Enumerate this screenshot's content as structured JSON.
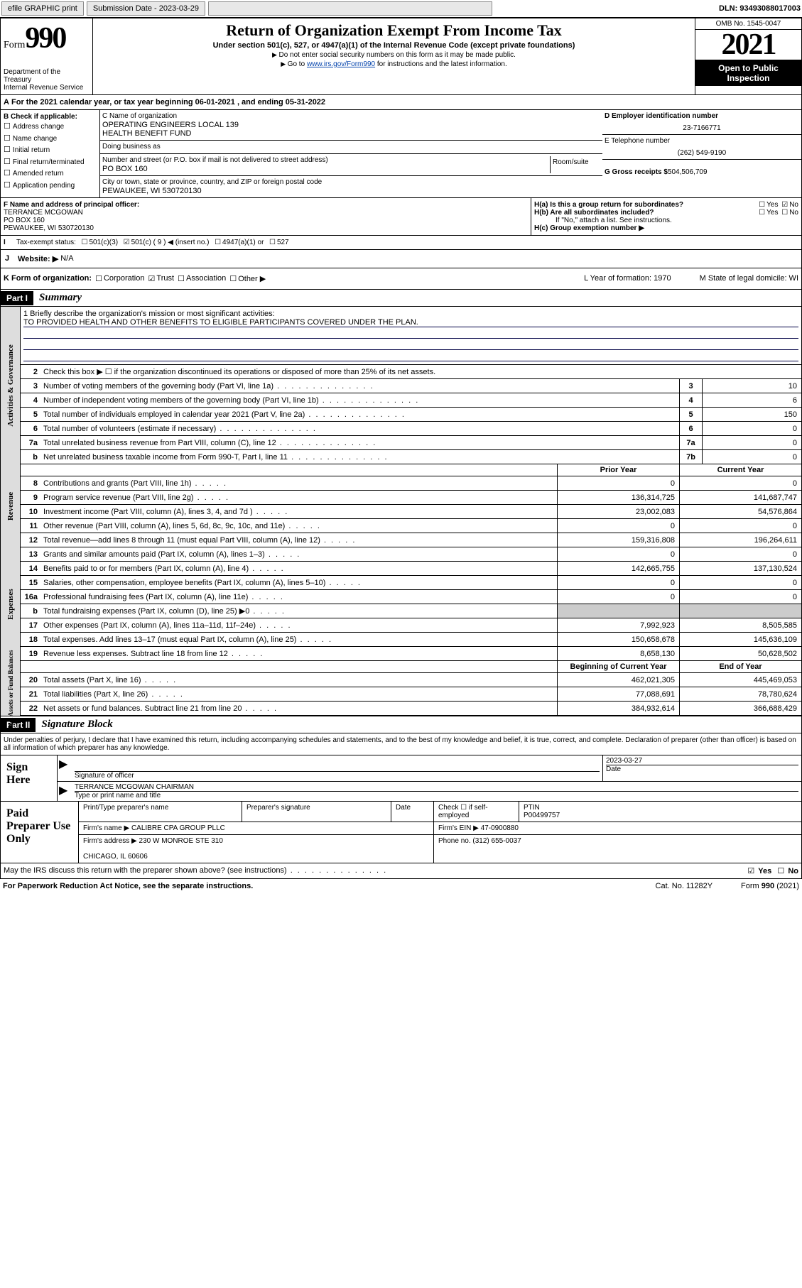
{
  "topbar": {
    "efile": "efile GRAPHIC print",
    "subdate_lbl": "Submission Date - 2023-03-29",
    "dln": "DLN: 93493088017003"
  },
  "header": {
    "form_word": "Form",
    "form_num": "990",
    "dept": "Department of the Treasury\nInternal Revenue Service",
    "title": "Return of Organization Exempt From Income Tax",
    "sub": "Under section 501(c), 527, or 4947(a)(1) of the Internal Revenue Code (except private foundations)",
    "note1": "Do not enter social security numbers on this form as it may be made public.",
    "note2_a": "Go to ",
    "note2_link": "www.irs.gov/Form990",
    "note2_b": " for instructions and the latest information.",
    "omb": "OMB No. 1545-0047",
    "year": "2021",
    "open": "Open to Public Inspection"
  },
  "A": {
    "text": "For the 2021 calendar year, or tax year beginning 06-01-2021  , and ending 05-31-2022"
  },
  "B": {
    "label": "B Check if applicable:",
    "opts": [
      "Address change",
      "Name change",
      "Initial return",
      "Final return/terminated",
      "Amended return",
      "Application pending"
    ]
  },
  "C": {
    "name_lbl": "C Name of organization",
    "name": "OPERATING ENGINEERS LOCAL 139\nHEALTH BENEFIT FUND",
    "dba_lbl": "Doing business as",
    "dba": "",
    "addr_lbl": "Number and street (or P.O. box if mail is not delivered to street address)",
    "room_lbl": "Room/suite",
    "addr": "PO BOX 160",
    "city_lbl": "City or town, state or province, country, and ZIP or foreign postal code",
    "city": "PEWAUKEE, WI  530720130"
  },
  "D": {
    "ein_lbl": "D Employer identification number",
    "ein": "23-7166771",
    "tel_lbl": "E Telephone number",
    "tel": "(262) 549-9190",
    "gross_lbl": "G Gross receipts $",
    "gross": "504,506,709"
  },
  "F": {
    "lbl": "F Name and address of principal officer:",
    "name": "TERRANCE MCGOWAN",
    "addr": "PO BOX 160\nPEWAUKEE, WI  530720130"
  },
  "H": {
    "a": "H(a)  Is this a group return for subordinates?",
    "a_ans": "No",
    "b": "H(b)  Are all subordinates included?",
    "b_note": "If \"No,\" attach a list. See instructions.",
    "c": "H(c)  Group exemption number ▶"
  },
  "I": {
    "lbl": "Tax-exempt status:",
    "opts": [
      "501(c)(3)",
      "501(c) ( 9 ) ◀ (insert no.)",
      "4947(a)(1) or",
      "527"
    ]
  },
  "J": {
    "lbl": "Website: ▶",
    "val": "N/A"
  },
  "K": {
    "lbl": "K Form of organization:",
    "opts": [
      "Corporation",
      "Trust",
      "Association",
      "Other ▶"
    ],
    "L": "L Year of formation: 1970",
    "M": "M State of legal domicile: WI"
  },
  "part1": {
    "part": "Part I",
    "title": "Summary"
  },
  "mission": {
    "q": "1   Briefly describe the organization's mission or most significant activities:",
    "a": "TO PROVIDED HEALTH AND OTHER BENEFITS TO ELIGIBLE PARTICIPANTS COVERED UNDER THE PLAN."
  },
  "gov": {
    "tab": "Activities & Governance",
    "l2": "Check this box ▶ ☐  if the organization discontinued its operations or disposed of more than 25% of its net assets.",
    "rows": [
      {
        "n": "3",
        "t": "Number of voting members of the governing body (Part VI, line 1a)",
        "box": "3",
        "v": "10"
      },
      {
        "n": "4",
        "t": "Number of independent voting members of the governing body (Part VI, line 1b)",
        "box": "4",
        "v": "6"
      },
      {
        "n": "5",
        "t": "Total number of individuals employed in calendar year 2021 (Part V, line 2a)",
        "box": "5",
        "v": "150"
      },
      {
        "n": "6",
        "t": "Total number of volunteers (estimate if necessary)",
        "box": "6",
        "v": "0"
      },
      {
        "n": "7a",
        "t": "Total unrelated business revenue from Part VIII, column (C), line 12",
        "box": "7a",
        "v": "0"
      },
      {
        "n": "b",
        "t": "Net unrelated business taxable income from Form 990-T, Part I, line 11",
        "box": "7b",
        "v": "0"
      }
    ]
  },
  "rev": {
    "tab": "Revenue",
    "hdr": {
      "py": "Prior Year",
      "cy": "Current Year"
    },
    "rows": [
      {
        "n": "8",
        "t": "Contributions and grants (Part VIII, line 1h)",
        "py": "0",
        "cy": "0"
      },
      {
        "n": "9",
        "t": "Program service revenue (Part VIII, line 2g)",
        "py": "136,314,725",
        "cy": "141,687,747"
      },
      {
        "n": "10",
        "t": "Investment income (Part VIII, column (A), lines 3, 4, and 7d )",
        "py": "23,002,083",
        "cy": "54,576,864"
      },
      {
        "n": "11",
        "t": "Other revenue (Part VIII, column (A), lines 5, 6d, 8c, 9c, 10c, and 11e)",
        "py": "0",
        "cy": "0"
      },
      {
        "n": "12",
        "t": "Total revenue—add lines 8 through 11 (must equal Part VIII, column (A), line 12)",
        "py": "159,316,808",
        "cy": "196,264,611"
      }
    ]
  },
  "exp": {
    "tab": "Expenses",
    "rows": [
      {
        "n": "13",
        "t": "Grants and similar amounts paid (Part IX, column (A), lines 1–3)",
        "py": "0",
        "cy": "0"
      },
      {
        "n": "14",
        "t": "Benefits paid to or for members (Part IX, column (A), line 4)",
        "py": "142,665,755",
        "cy": "137,130,524"
      },
      {
        "n": "15",
        "t": "Salaries, other compensation, employee benefits (Part IX, column (A), lines 5–10)",
        "py": "0",
        "cy": "0"
      },
      {
        "n": "16a",
        "t": "Professional fundraising fees (Part IX, column (A), line 11e)",
        "py": "0",
        "cy": "0"
      },
      {
        "n": "b",
        "t": "Total fundraising expenses (Part IX, column (D), line 25) ▶0",
        "py": "",
        "cy": "",
        "shade": true
      },
      {
        "n": "17",
        "t": "Other expenses (Part IX, column (A), lines 11a–11d, 11f–24e)",
        "py": "7,992,923",
        "cy": "8,505,585"
      },
      {
        "n": "18",
        "t": "Total expenses. Add lines 13–17 (must equal Part IX, column (A), line 25)",
        "py": "150,658,678",
        "cy": "145,636,109"
      },
      {
        "n": "19",
        "t": "Revenue less expenses. Subtract line 18 from line 12",
        "py": "8,658,130",
        "cy": "50,628,502"
      }
    ]
  },
  "net": {
    "tab": "Net Assets or Fund Balances",
    "hdr": {
      "py": "Beginning of Current Year",
      "cy": "End of Year"
    },
    "rows": [
      {
        "n": "20",
        "t": "Total assets (Part X, line 16)",
        "py": "462,021,305",
        "cy": "445,469,053"
      },
      {
        "n": "21",
        "t": "Total liabilities (Part X, line 26)",
        "py": "77,088,691",
        "cy": "78,780,624"
      },
      {
        "n": "22",
        "t": "Net assets or fund balances. Subtract line 21 from line 20",
        "py": "384,932,614",
        "cy": "366,688,429"
      }
    ]
  },
  "part2": {
    "part": "Part II",
    "title": "Signature Block"
  },
  "sig": {
    "decl": "Under penalties of perjury, I declare that I have examined this return, including accompanying schedules and statements, and to the best of my knowledge and belief, it is true, correct, and complete. Declaration of preparer (other than officer) is based on all information of which preparer has any knowledge.",
    "here": "Sign Here",
    "off_lbl": "Signature of officer",
    "date_lbl": "Date",
    "date": "2023-03-27",
    "name": "TERRANCE MCGOWAN CHAIRMAN",
    "name_lbl": "Type or print name and title"
  },
  "paid": {
    "lbl": "Paid Preparer Use Only",
    "h": {
      "a": "Print/Type preparer's name",
      "b": "Preparer's signature",
      "c": "Date",
      "d": "Check ☐ if self-employed",
      "e": "PTIN",
      "ev": "P00499757"
    },
    "firm": {
      "lbl": "Firm's name    ▶",
      "v": "CALIBRE CPA GROUP PLLC",
      "ein_lbl": "Firm's EIN ▶",
      "ein": "47-0900880"
    },
    "addr": {
      "lbl": "Firm's address ▶",
      "v": "230 W MONROE STE 310\n\nCHICAGO, IL  60606",
      "ph_lbl": "Phone no.",
      "ph": "(312) 655-0037"
    }
  },
  "may": {
    "t": "May the IRS discuss this return with the preparer shown above? (see instructions)",
    "yes": "Yes",
    "no": "No"
  },
  "foot": {
    "l": "For Paperwork Reduction Act Notice, see the separate instructions.",
    "m": "Cat. No. 11282Y",
    "r": "Form 990 (2021)"
  }
}
